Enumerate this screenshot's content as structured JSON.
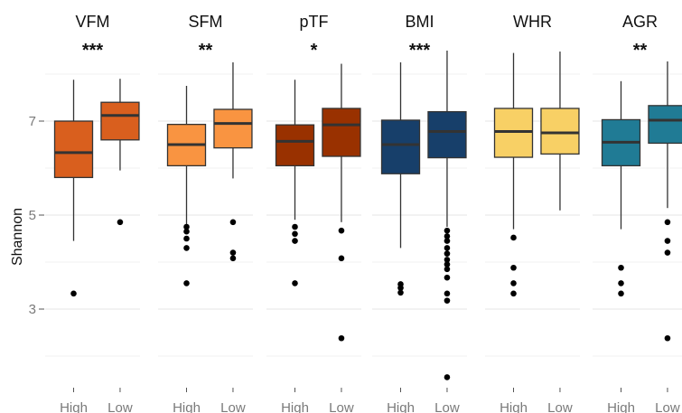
{
  "chart_data": {
    "type": "box",
    "ylabel": "Shannon",
    "yticks": [
      3,
      5,
      7
    ],
    "ylim": [
      1.4,
      8.6
    ],
    "grid": true,
    "categories": [
      "High",
      "Low"
    ],
    "facets": [
      {
        "name": "VFM",
        "significance": "***",
        "color": "#d95f1e",
        "boxes": [
          {
            "group": "High",
            "min": 4.45,
            "q1": 5.8,
            "median": 6.33,
            "q3": 7.0,
            "max": 7.88,
            "outliers": [
              3.33
            ]
          },
          {
            "group": "Low",
            "min": 5.95,
            "q1": 6.6,
            "median": 7.12,
            "q3": 7.4,
            "max": 7.9,
            "outliers": [
              4.85
            ]
          }
        ]
      },
      {
        "name": "SFM",
        "significance": "**",
        "color": "#f99441",
        "boxes": [
          {
            "group": "High",
            "min": 4.8,
            "q1": 6.05,
            "median": 6.5,
            "q3": 6.93,
            "max": 7.75,
            "outliers": [
              4.75,
              4.65,
              4.5,
              4.3,
              3.55
            ]
          },
          {
            "group": "Low",
            "min": 5.78,
            "q1": 6.43,
            "median": 6.95,
            "q3": 7.25,
            "max": 8.25,
            "outliers": [
              4.85,
              4.2,
              4.08
            ]
          }
        ]
      },
      {
        "name": "pTF",
        "significance": "*",
        "color": "#993100",
        "boxes": [
          {
            "group": "High",
            "min": 4.9,
            "q1": 6.05,
            "median": 6.57,
            "q3": 6.92,
            "max": 7.88,
            "outliers": [
              4.75,
              4.6,
              4.45,
              3.55
            ]
          },
          {
            "group": "Low",
            "min": 4.85,
            "q1": 6.25,
            "median": 6.92,
            "q3": 7.27,
            "max": 8.22,
            "outliers": [
              4.67,
              4.08,
              2.38
            ]
          }
        ]
      },
      {
        "name": "BMI",
        "significance": "***",
        "color": "#173f6a",
        "boxes": [
          {
            "group": "High",
            "min": 4.3,
            "q1": 5.88,
            "median": 6.5,
            "q3": 7.02,
            "max": 8.25,
            "outliers": [
              3.53,
              3.45,
              3.35
            ]
          },
          {
            "group": "Low",
            "min": 4.75,
            "q1": 6.22,
            "median": 6.78,
            "q3": 7.2,
            "max": 8.5,
            "outliers": [
              4.67,
              4.55,
              4.45,
              4.3,
              4.18,
              4.05,
              3.95,
              3.85,
              3.67,
              3.33,
              3.18,
              1.55
            ]
          }
        ]
      },
      {
        "name": "WHR",
        "significance": "",
        "color": "#f8d065",
        "boxes": [
          {
            "group": "High",
            "min": 4.7,
            "q1": 6.23,
            "median": 6.78,
            "q3": 7.27,
            "max": 8.45,
            "outliers": [
              4.52,
              3.88,
              3.55,
              3.33
            ]
          },
          {
            "group": "Low",
            "min": 5.1,
            "q1": 6.3,
            "median": 6.75,
            "q3": 7.27,
            "max": 8.48,
            "outliers": []
          }
        ]
      },
      {
        "name": "AGR",
        "significance": "**",
        "color": "#207b95",
        "boxes": [
          {
            "group": "High",
            "min": 4.7,
            "q1": 6.05,
            "median": 6.55,
            "q3": 7.03,
            "max": 7.85,
            "outliers": [
              3.88,
              3.55,
              3.33
            ]
          },
          {
            "group": "Low",
            "min": 5.15,
            "q1": 6.53,
            "median": 7.02,
            "q3": 7.33,
            "max": 8.27,
            "outliers": [
              4.85,
              4.45,
              4.2,
              2.38
            ]
          }
        ]
      }
    ]
  }
}
